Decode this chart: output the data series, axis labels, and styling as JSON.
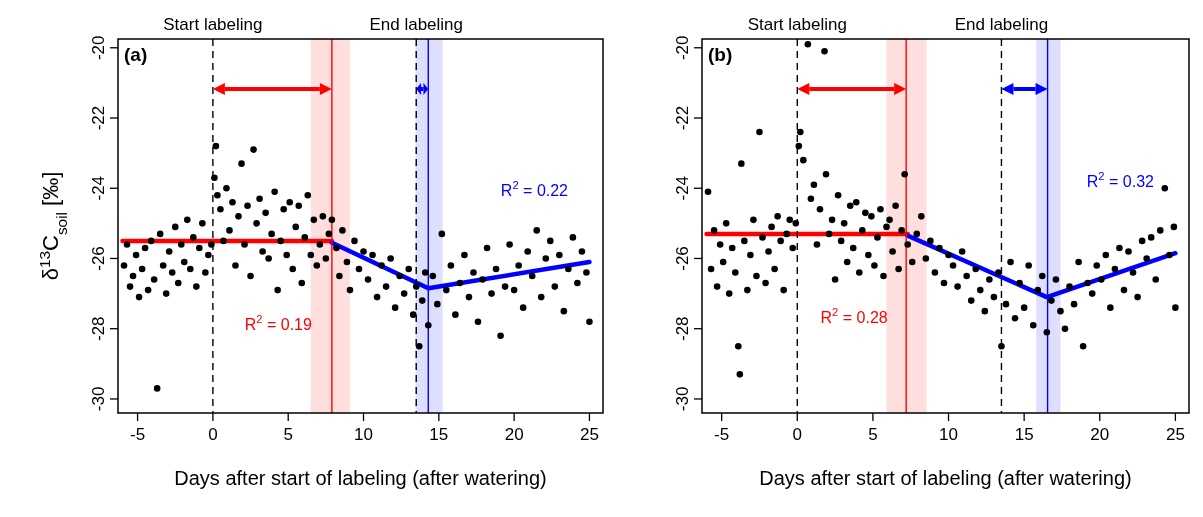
{
  "chart_data": [
    {
      "type": "scatter",
      "title": "(a)",
      "xlabel": "Days after start of labeling (after watering)",
      "ylabel": "δ$^{13}$C$_{soil}$ [‰]",
      "xlim": [
        -6.3,
        25.9
      ],
      "ylim": [
        -30.4,
        -19.75
      ],
      "xticks": [
        -5,
        0,
        5,
        10,
        15,
        20,
        25
      ],
      "yticks": [
        -30,
        -28,
        -26,
        -24,
        -22,
        -20
      ],
      "series": [
        {
          "marker": "circle",
          "color": "#000000",
          "x": [
            -5.9,
            -5.7,
            -5.5,
            -5.3,
            -5.1,
            -4.9,
            -4.7,
            -4.5,
            -4.3,
            -4.1,
            -3.9,
            -3.7,
            -3.5,
            -3.3,
            -3.1,
            -2.9,
            -2.7,
            -2.5,
            -2.3,
            -2.1,
            -1.9,
            -1.7,
            -1.5,
            -1.3,
            -1.1,
            -0.9,
            -0.7,
            -0.5,
            -0.3,
            -0.1,
            0.1,
            0.2,
            0.3,
            0.5,
            0.7,
            0.9,
            1.1,
            1.3,
            1.5,
            1.7,
            1.9,
            2.1,
            2.3,
            2.5,
            2.7,
            2.9,
            3.1,
            3.3,
            3.5,
            3.7,
            3.9,
            4.1,
            4.3,
            4.5,
            4.7,
            4.9,
            5.1,
            5.3,
            5.5,
            5.7,
            5.9,
            6.1,
            6.3,
            6.5,
            6.7,
            6.9,
            7.1,
            7.3,
            7.5,
            7.7,
            7.9,
            8.2,
            8.4,
            8.6,
            8.9,
            9.1,
            9.4,
            9.7,
            10.0,
            10.3,
            10.6,
            10.9,
            11.2,
            11.5,
            11.8,
            12.1,
            12.4,
            12.7,
            13.0,
            13.3,
            13.5,
            13.7,
            13.9,
            14.1,
            14.3,
            14.6,
            14.9,
            15.2,
            15.5,
            15.8,
            16.1,
            16.4,
            16.7,
            17.0,
            17.3,
            17.6,
            17.9,
            18.2,
            18.5,
            18.8,
            19.1,
            19.4,
            19.7,
            20.0,
            20.3,
            20.6,
            20.9,
            21.2,
            21.5,
            21.8,
            22.1,
            22.4,
            22.7,
            23.0,
            23.3,
            23.6,
            23.9,
            24.2,
            24.5,
            24.8,
            25.0
          ],
          "values": [
            -26.2,
            -25.6,
            -26.8,
            -26.5,
            -25.9,
            -27.1,
            -26.3,
            -25.7,
            -26.9,
            -25.5,
            -26.6,
            -29.7,
            -25.3,
            -26.2,
            -27.0,
            -25.8,
            -26.4,
            -25.1,
            -26.7,
            -25.6,
            -26.1,
            -24.9,
            -26.3,
            -25.4,
            -26.8,
            -25.7,
            -25.0,
            -26.4,
            -25.9,
            -25.6,
            -23.7,
            -22.8,
            -24.2,
            -24.6,
            -25.5,
            -24.0,
            -25.2,
            -24.4,
            -26.2,
            -24.8,
            -23.3,
            -25.6,
            -24.5,
            -26.5,
            -22.9,
            -25.0,
            -24.3,
            -25.8,
            -24.7,
            -26.0,
            -25.3,
            -24.1,
            -26.9,
            -25.5,
            -24.6,
            -25.9,
            -24.4,
            -26.3,
            -25.1,
            -24.5,
            -26.7,
            -25.4,
            -24.2,
            -25.9,
            -24.9,
            -26.2,
            -25.6,
            -24.8,
            -26.0,
            -25.3,
            -24.9,
            -25.7,
            -26.5,
            -25.2,
            -26.1,
            -26.9,
            -25.5,
            -26.3,
            -25.8,
            -26.6,
            -25.9,
            -27.1,
            -26.2,
            -26.8,
            -26.0,
            -27.4,
            -26.5,
            -27.0,
            -26.3,
            -27.6,
            -26.8,
            -28.5,
            -27.2,
            -26.4,
            -27.9,
            -26.5,
            -27.3,
            -25.3,
            -26.9,
            -26.2,
            -27.6,
            -26.7,
            -25.9,
            -27.1,
            -26.4,
            -27.8,
            -26.6,
            -25.7,
            -27.0,
            -26.3,
            -28.2,
            -26.8,
            -25.6,
            -26.9,
            -26.2,
            -27.4,
            -25.8,
            -26.5,
            -25.2,
            -27.1,
            -26.0,
            -25.5,
            -26.8,
            -25.9,
            -27.5,
            -26.3,
            -25.4,
            -26.7,
            -25.8,
            -26.4,
            -27.8
          ]
        },
        {
          "type": "line",
          "color": "#ff0000",
          "x": [
            -6.0,
            7.9
          ],
          "values": [
            -25.5,
            -25.5
          ]
        },
        {
          "type": "line",
          "color": "#0000ff",
          "x": [
            7.9,
            14.3,
            25.0
          ],
          "values": [
            -25.55,
            -26.85,
            -26.1
          ]
        }
      ],
      "ref_lines": [
        {
          "axis": "x",
          "value": 0,
          "label": "Start labeling",
          "color": "#000000",
          "line_style": "dashed"
        },
        {
          "axis": "x",
          "value": 13.5,
          "label": "End labeling",
          "color": "#000000",
          "line_style": "dashed"
        },
        {
          "axis": "x",
          "value": 7.9,
          "color": "#ff0000",
          "line_style": "solid"
        },
        {
          "axis": "x",
          "value": 14.3,
          "color": "#0000ff",
          "line_style": "solid"
        }
      ],
      "bands": [
        {
          "axis": "x",
          "from": 6.5,
          "to": 9.1,
          "color": "#ffdede"
        },
        {
          "axis": "x",
          "from": 13.45,
          "to": 15.25,
          "color": "#dedeff"
        }
      ],
      "annotations": [
        "R$^{2}$ = 0.19",
        "R$^{2}$ = 0.22"
      ]
    },
    {
      "type": "scatter",
      "title": "(b)",
      "xlabel": "Days after start of labeling (after watering)",
      "xlim": [
        -6.3,
        25.9
      ],
      "ylim": [
        -30.4,
        -19.75
      ],
      "xticks": [
        -5,
        0,
        5,
        10,
        15,
        20,
        25
      ],
      "yticks": [
        -30,
        -28,
        -26,
        -24,
        -22,
        -20
      ],
      "series": [
        {
          "marker": "circle",
          "color": "#000000",
          "x": [
            -5.9,
            -5.7,
            -5.5,
            -5.3,
            -5.1,
            -4.9,
            -4.7,
            -4.5,
            -4.3,
            -4.1,
            -3.9,
            -3.8,
            -3.7,
            -3.5,
            -3.3,
            -3.1,
            -2.9,
            -2.7,
            -2.5,
            -2.3,
            -2.1,
            -1.9,
            -1.7,
            -1.5,
            -1.3,
            -1.1,
            -0.9,
            -0.7,
            -0.5,
            -0.3,
            -0.1,
            0.1,
            0.2,
            0.4,
            0.7,
            0.9,
            1.1,
            1.3,
            1.5,
            1.8,
            1.9,
            2.1,
            2.3,
            2.5,
            2.7,
            2.9,
            3.1,
            3.3,
            3.5,
            3.7,
            3.9,
            4.1,
            4.3,
            4.5,
            4.7,
            4.9,
            5.1,
            5.3,
            5.5,
            5.7,
            5.9,
            6.1,
            6.3,
            6.5,
            6.7,
            6.9,
            7.1,
            7.3,
            7.6,
            7.9,
            8.2,
            8.5,
            8.8,
            9.1,
            9.4,
            9.7,
            10.0,
            10.3,
            10.6,
            10.9,
            11.2,
            11.5,
            11.8,
            12.1,
            12.4,
            12.7,
            13.0,
            13.3,
            13.5,
            13.8,
            14.1,
            14.4,
            14.7,
            15.0,
            15.3,
            15.6,
            15.9,
            16.2,
            16.5,
            16.8,
            17.1,
            17.4,
            17.7,
            18.0,
            18.3,
            18.6,
            18.9,
            19.2,
            19.5,
            19.8,
            20.1,
            20.4,
            20.7,
            21.0,
            21.3,
            21.6,
            21.9,
            22.2,
            22.5,
            22.8,
            23.1,
            23.4,
            23.7,
            24.0,
            24.3,
            24.6,
            24.9,
            25.0
          ],
          "values": [
            -24.1,
            -26.3,
            -25.2,
            -26.8,
            -25.6,
            -26.1,
            -25.0,
            -27.0,
            -25.7,
            -26.4,
            -28.5,
            -29.3,
            -23.3,
            -25.5,
            -26.9,
            -25.9,
            -24.9,
            -26.5,
            -22.4,
            -25.4,
            -26.7,
            -25.8,
            -25.1,
            -26.3,
            -24.8,
            -25.5,
            -26.9,
            -25.3,
            -24.9,
            -25.7,
            -25.0,
            -22.8,
            -22.4,
            -23.2,
            -19.9,
            -24.3,
            -23.9,
            -25.6,
            -24.6,
            -20.1,
            -23.6,
            -25.3,
            -24.9,
            -26.6,
            -24.2,
            -25.5,
            -25.0,
            -26.1,
            -24.5,
            -25.7,
            -24.4,
            -26.4,
            -25.2,
            -24.7,
            -25.9,
            -24.8,
            -26.2,
            -25.4,
            -24.6,
            -26.5,
            -25.1,
            -24.9,
            -25.8,
            -24.5,
            -26.3,
            -25.2,
            -23.6,
            -25.6,
            -26.1,
            -25.3,
            -24.8,
            -26.0,
            -25.5,
            -26.4,
            -25.7,
            -26.7,
            -25.9,
            -26.2,
            -26.8,
            -25.8,
            -26.5,
            -27.2,
            -26.3,
            -26.9,
            -27.5,
            -26.6,
            -27.1,
            -26.4,
            -28.5,
            -27.3,
            -26.1,
            -27.7,
            -26.7,
            -27.4,
            -26.2,
            -27.9,
            -26.9,
            -26.5,
            -28.1,
            -27.2,
            -26.6,
            -27.5,
            -28.0,
            -26.8,
            -27.3,
            -26.1,
            -28.5,
            -26.7,
            -27.0,
            -26.2,
            -26.6,
            -25.9,
            -27.4,
            -26.3,
            -25.7,
            -26.9,
            -25.8,
            -26.4,
            -27.1,
            -25.5,
            -26.0,
            -25.4,
            -26.6,
            -25.2,
            -24.0,
            -25.9,
            -25.1,
            -27.4
          ]
        },
        {
          "type": "line",
          "color": "#ff0000",
          "x": [
            -6.0,
            7.3
          ],
          "values": [
            -25.3,
            -25.3
          ]
        },
        {
          "type": "line",
          "color": "#0000ff",
          "x": [
            7.3,
            16.5,
            25.0
          ],
          "values": [
            -25.35,
            -27.1,
            -25.85
          ]
        }
      ],
      "ref_lines": [
        {
          "axis": "x",
          "value": 0,
          "label": "Start labeling",
          "color": "#000000",
          "line_style": "dashed"
        },
        {
          "axis": "x",
          "value": 13.5,
          "label": "End labeling",
          "color": "#000000",
          "line_style": "dashed"
        },
        {
          "axis": "x",
          "value": 7.2,
          "color": "#ff0000",
          "line_style": "solid"
        },
        {
          "axis": "x",
          "value": 16.55,
          "color": "#0000ff",
          "line_style": "solid"
        }
      ],
      "bands": [
        {
          "axis": "x",
          "from": 5.9,
          "to": 8.55,
          "color": "#ffdede"
        },
        {
          "axis": "x",
          "from": 15.8,
          "to": 17.4,
          "color": "#dedeff"
        }
      ],
      "annotations": [
        "R$^{2}$ = 0.28",
        "R$^{2}$ = 0.32"
      ]
    }
  ]
}
